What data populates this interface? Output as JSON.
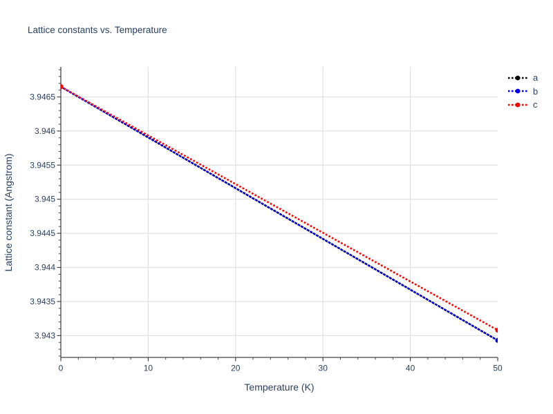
{
  "page": {
    "background": "#ffffff"
  },
  "chart_data": {
    "type": "line",
    "title": "Lattice constants vs. Temperature",
    "xlabel": "Temperature (K)",
    "ylabel": "Lattice constant (Angstrom)",
    "xlim": [
      0,
      50
    ],
    "ylim": [
      3.94268,
      3.94694
    ],
    "x_major_ticks": [
      0,
      10,
      20,
      30,
      40,
      50
    ],
    "x_minor_tick_step": 2,
    "y_major_ticks": [
      3.943,
      3.9435,
      3.944,
      3.9445,
      3.945,
      3.9455,
      3.946,
      3.9465
    ],
    "y_minor_tick_step": 0.0001,
    "grid": "major",
    "legend_position": "top-right",
    "line_style": "dotted",
    "marker": "circle",
    "series": [
      {
        "name": "a",
        "color": "#000000",
        "points": [
          [
            0,
            3.94665
          ],
          [
            50,
            3.94293
          ]
        ]
      },
      {
        "name": "b",
        "color": "#0000ff",
        "points": [
          [
            0,
            3.94665
          ],
          [
            50,
            3.94293
          ]
        ]
      },
      {
        "name": "c",
        "color": "#ff0000",
        "points": [
          [
            0,
            3.94665
          ],
          [
            50,
            3.94308
          ]
        ]
      }
    ]
  },
  "theme": {
    "text_color": "#2a3f5f",
    "axis_color": "#444444",
    "grid_color": "#e2e2e2",
    "background": "#ffffff"
  }
}
